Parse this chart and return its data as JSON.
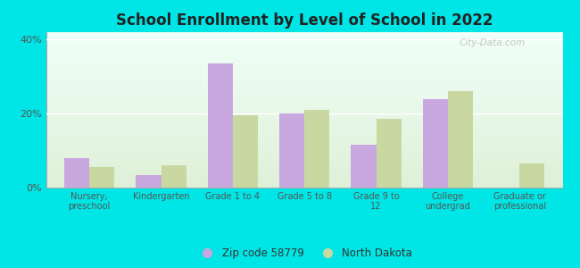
{
  "title": "School Enrollment by Level of School in 2022",
  "categories": [
    "Nursery,\npreschool",
    "Kindergarten",
    "Grade 1 to 4",
    "Grade 5 to 8",
    "Grade 9 to\n12",
    "College\nundergrad",
    "Graduate or\nprofessional"
  ],
  "zip_values": [
    8.0,
    3.5,
    33.5,
    20.0,
    11.5,
    24.0,
    0.0
  ],
  "nd_values": [
    5.5,
    6.0,
    19.5,
    21.0,
    18.5,
    26.0,
    6.5
  ],
  "zip_color": "#c9a8e0",
  "nd_color": "#c8d8a0",
  "background_outer": "#00e5e5",
  "background_inner_top": "#f0fff8",
  "background_inner_bottom": "#dff0d8",
  "ylim": [
    0,
    42
  ],
  "yticks": [
    0,
    20,
    40
  ],
  "ytick_labels": [
    "0%",
    "20%",
    "40%"
  ],
  "legend_label_zip": "Zip code 58779",
  "legend_label_nd": "North Dakota",
  "bar_width": 0.35,
  "watermark": "City-Data.com"
}
